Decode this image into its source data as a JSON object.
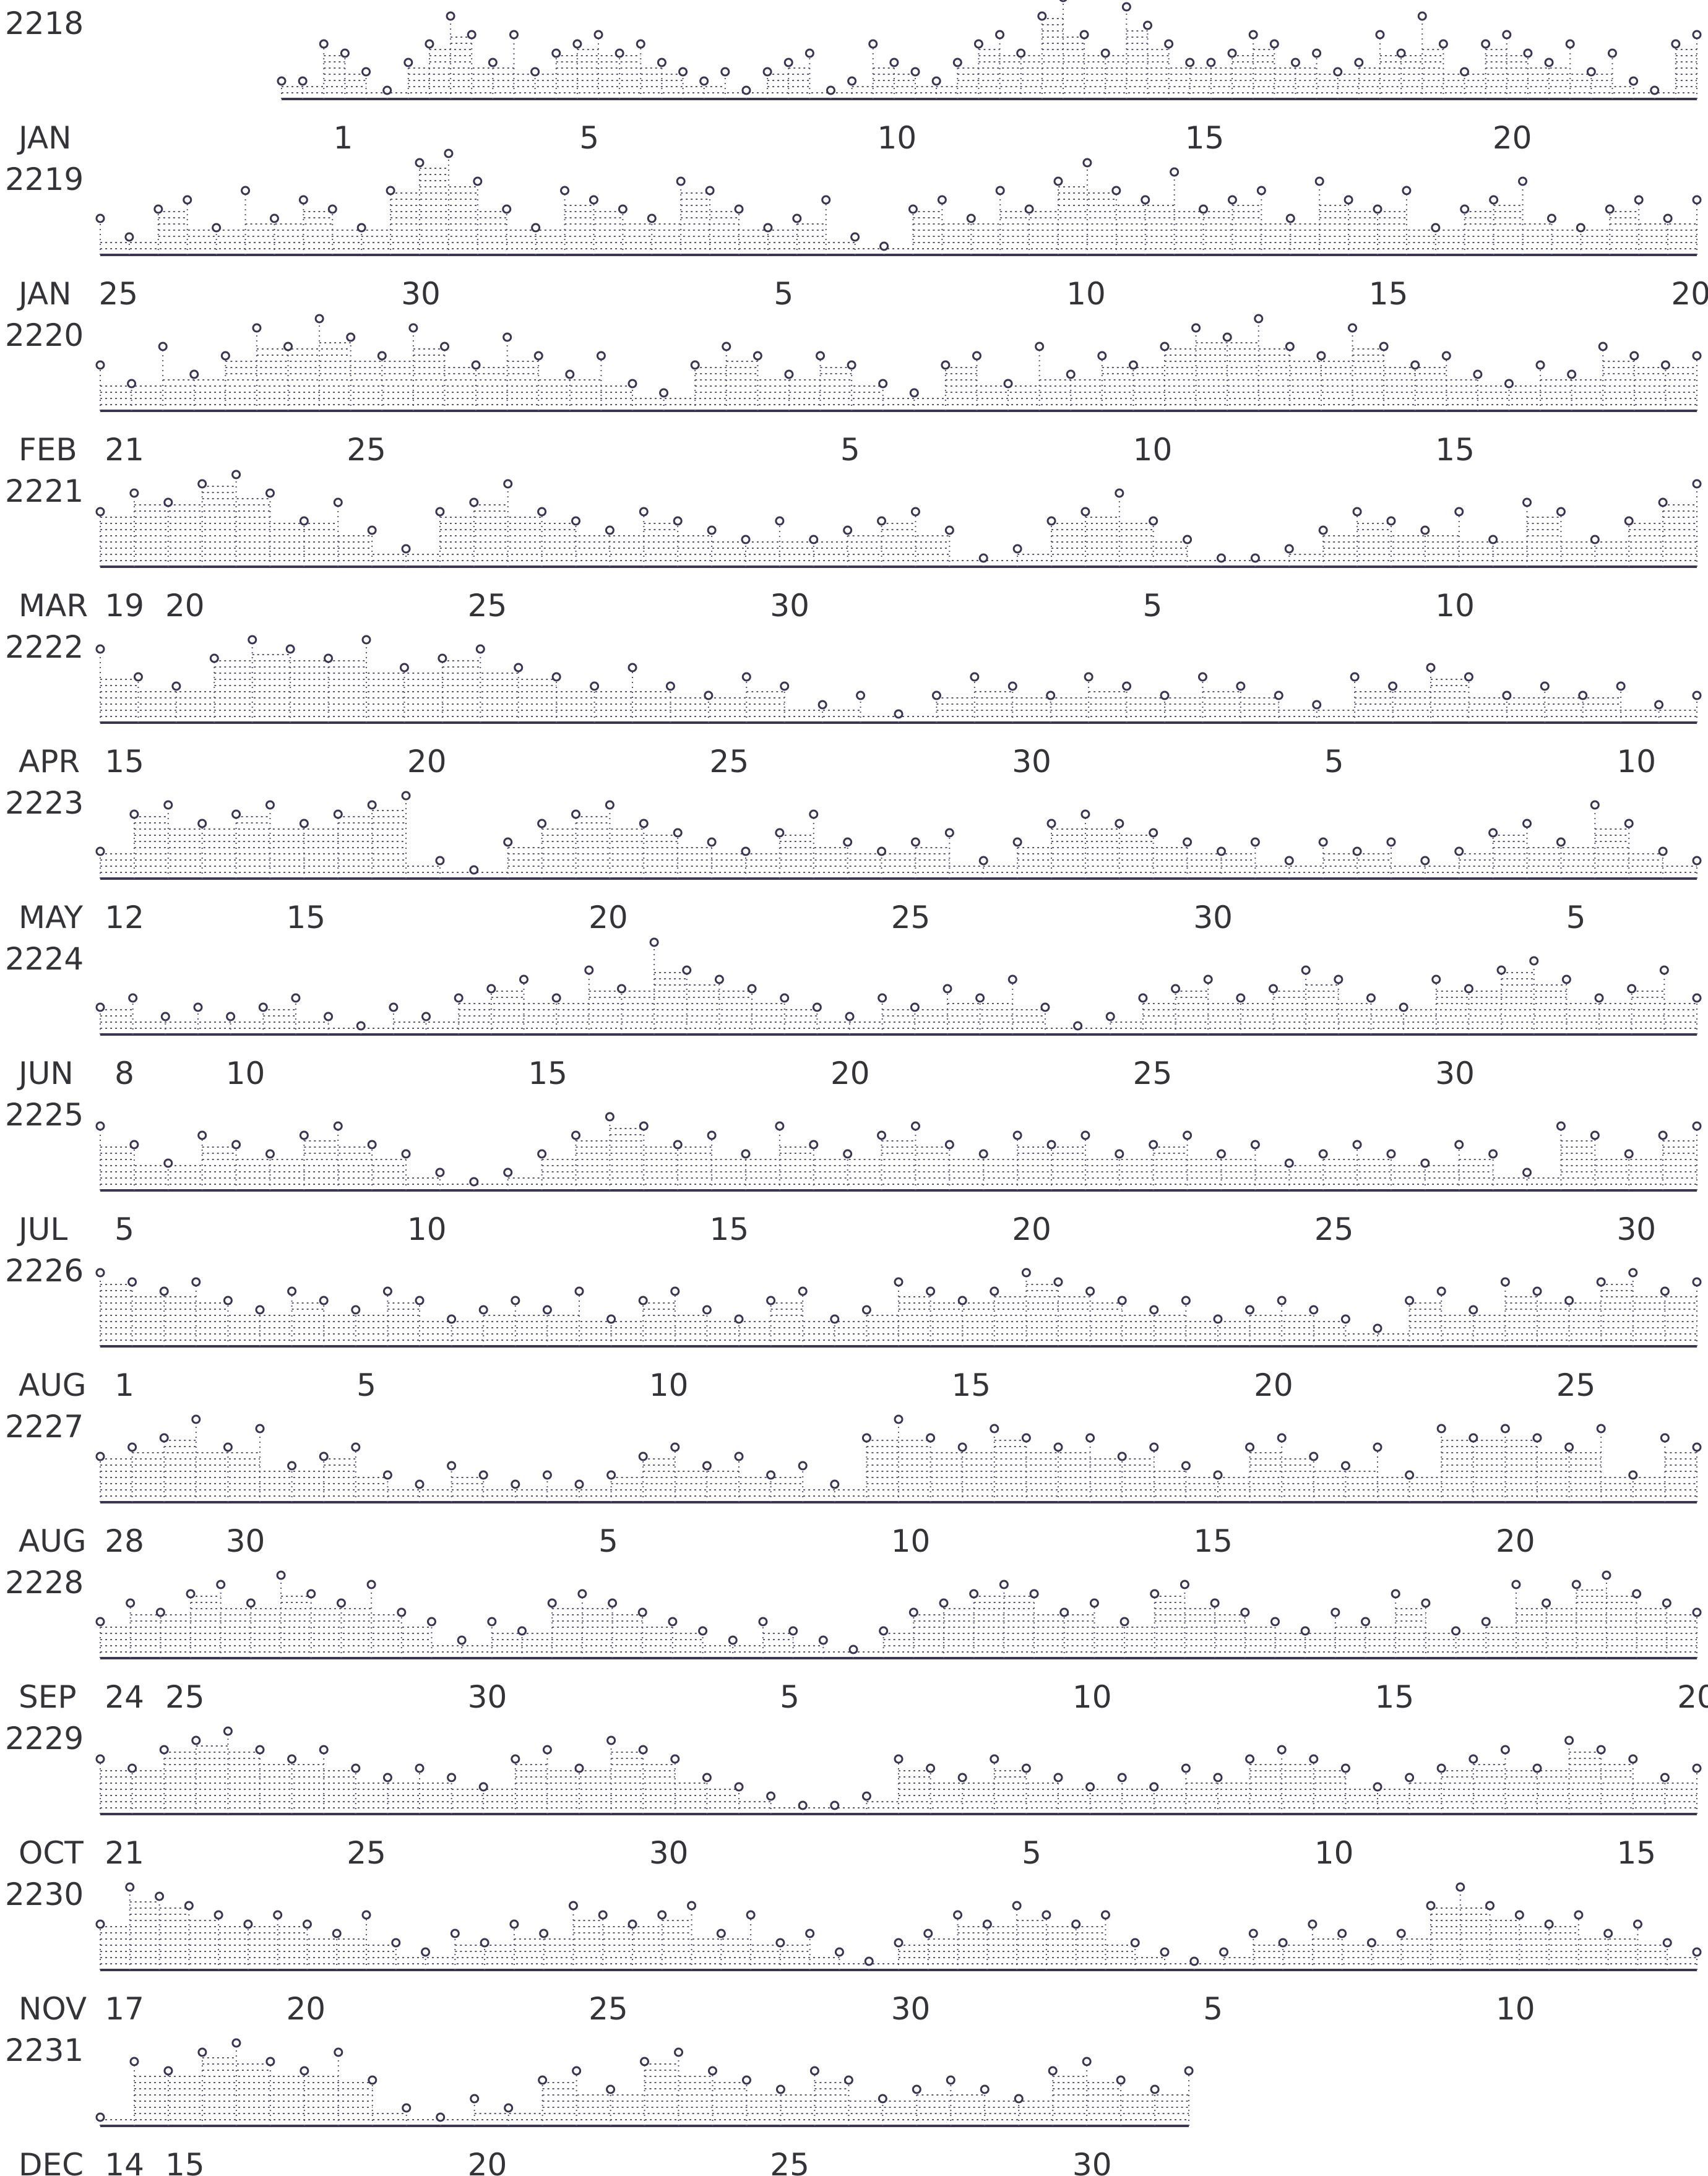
{
  "chart_data": {
    "type": "scatter",
    "title": "",
    "xlabel": "",
    "ylabel": "",
    "colors": {
      "ink": "#3b3550",
      "fill": "#5a5670",
      "label": "#333338"
    },
    "rows": [
      {
        "row_label": "2218",
        "month_label": "JAN",
        "x_range": [
          0.0,
          23.0
        ],
        "ticks": [
          1,
          5,
          10,
          15,
          20
        ],
        "marks": [
          {
            "label": "1",
            "value": 1
          },
          {
            "label": "5",
            "value": 5
          },
          {
            "label": "10",
            "value": 10
          },
          {
            "label": "15",
            "value": 15
          },
          {
            "label": "20",
            "value": 20
          }
        ]
      },
      {
        "row_label": "2219",
        "month_label": "JAN",
        "x_range": [
          24.7,
          51.1
        ],
        "marks": [
          {
            "label": "25",
            "value": 25
          },
          {
            "label": "30",
            "value": 30
          },
          {
            "label": "5",
            "value": 36
          },
          {
            "label": "10",
            "value": 41
          },
          {
            "label": "15",
            "value": 46
          },
          {
            "label": "20",
            "value": 51
          }
        ]
      },
      {
        "row_label": "2220",
        "month_label": "FEB",
        "x_range": [
          20.6,
          47.0
        ],
        "marks": [
          {
            "label": "21",
            "value": 21
          },
          {
            "label": "25",
            "value": 25
          },
          {
            "label": "5",
            "value": 33
          },
          {
            "label": "10",
            "value": 38
          },
          {
            "label": "15",
            "value": 43
          }
        ]
      },
      {
        "row_label": "2221",
        "month_label": "MAR",
        "x_range": [
          18.6,
          45.0
        ],
        "marks": [
          {
            "label": "19",
            "value": 19
          },
          {
            "label": "20",
            "value": 20
          },
          {
            "label": "25",
            "value": 25
          },
          {
            "label": "30",
            "value": 30
          },
          {
            "label": "5",
            "value": 36
          },
          {
            "label": "10",
            "value": 41
          }
        ]
      },
      {
        "row_label": "2222",
        "month_label": "APR",
        "x_range": [
          14.6,
          41.0
        ],
        "marks": [
          {
            "label": "15",
            "value": 15
          },
          {
            "label": "20",
            "value": 20
          },
          {
            "label": "25",
            "value": 25
          },
          {
            "label": "30",
            "value": 30
          },
          {
            "label": "5",
            "value": 35
          },
          {
            "label": "10",
            "value": 40
          }
        ]
      },
      {
        "row_label": "2223",
        "month_label": "MAY",
        "x_range": [
          11.6,
          38.0
        ],
        "marks": [
          {
            "label": "12",
            "value": 12
          },
          {
            "label": "15",
            "value": 15
          },
          {
            "label": "20",
            "value": 20
          },
          {
            "label": "25",
            "value": 25
          },
          {
            "label": "30",
            "value": 30
          },
          {
            "label": "5",
            "value": 36
          }
        ]
      },
      {
        "row_label": "2224",
        "month_label": "JUN",
        "x_range": [
          7.6,
          34.0
        ],
        "marks": [
          {
            "label": "8",
            "value": 8
          },
          {
            "label": "10",
            "value": 10
          },
          {
            "label": "15",
            "value": 15
          },
          {
            "label": "20",
            "value": 20
          },
          {
            "label": "25",
            "value": 25
          },
          {
            "label": "30",
            "value": 30
          }
        ]
      },
      {
        "row_label": "2225",
        "month_label": "JUL",
        "x_range": [
          4.6,
          31.0
        ],
        "marks": [
          {
            "label": "5",
            "value": 5
          },
          {
            "label": "10",
            "value": 10
          },
          {
            "label": "15",
            "value": 15
          },
          {
            "label": "20",
            "value": 20
          },
          {
            "label": "25",
            "value": 25
          },
          {
            "label": "30",
            "value": 30
          }
        ]
      },
      {
        "row_label": "2226",
        "month_label": "AUG",
        "x_range": [
          0.6,
          27.0
        ],
        "marks": [
          {
            "label": "1",
            "value": 1
          },
          {
            "label": "5",
            "value": 5
          },
          {
            "label": "10",
            "value": 10
          },
          {
            "label": "15",
            "value": 15
          },
          {
            "label": "20",
            "value": 20
          },
          {
            "label": "25",
            "value": 25
          }
        ]
      },
      {
        "row_label": "2227",
        "month_label": "AUG",
        "x_range": [
          27.6,
          54.0
        ],
        "marks": [
          {
            "label": "28",
            "value": 28
          },
          {
            "label": "30",
            "value": 30
          },
          {
            "label": "5",
            "value": 36
          },
          {
            "label": "10",
            "value": 41
          },
          {
            "label": "15",
            "value": 46
          },
          {
            "label": "20",
            "value": 51
          }
        ]
      },
      {
        "row_label": "2228",
        "month_label": "SEP",
        "x_range": [
          23.6,
          50.0
        ],
        "marks": [
          {
            "label": "24",
            "value": 24
          },
          {
            "label": "25",
            "value": 25
          },
          {
            "label": "30",
            "value": 30
          },
          {
            "label": "5",
            "value": 35
          },
          {
            "label": "10",
            "value": 40
          },
          {
            "label": "15",
            "value": 45
          },
          {
            "label": "20",
            "value": 50
          }
        ]
      },
      {
        "row_label": "2229",
        "month_label": "OCT",
        "x_range": [
          20.6,
          47.0
        ],
        "marks": [
          {
            "label": "21",
            "value": 21
          },
          {
            "label": "25",
            "value": 25
          },
          {
            "label": "30",
            "value": 30
          },
          {
            "label": "5",
            "value": 36
          },
          {
            "label": "10",
            "value": 41
          },
          {
            "label": "15",
            "value": 46
          }
        ]
      },
      {
        "row_label": "2230",
        "month_label": "NOV",
        "x_range": [
          16.6,
          43.0
        ],
        "marks": [
          {
            "label": "17",
            "value": 17
          },
          {
            "label": "20",
            "value": 20
          },
          {
            "label": "25",
            "value": 25
          },
          {
            "label": "30",
            "value": 30
          },
          {
            "label": "5",
            "value": 35
          },
          {
            "label": "10",
            "value": 40
          }
        ]
      },
      {
        "row_label": "2231",
        "month_label": "DEC",
        "x_range": [
          13.6,
          40.0
        ],
        "partial_end": 31.6,
        "marks": [
          {
            "label": "14",
            "value": 14
          },
          {
            "label": "15",
            "value": 15
          },
          {
            "label": "20",
            "value": 20
          },
          {
            "label": "25",
            "value": 25
          },
          {
            "label": "30",
            "value": 30
          }
        ]
      }
    ],
    "series_profile_note": "",
    "profiles": [
      [
        0.1,
        0.1,
        0.5,
        0.4,
        0.2,
        0.0,
        0.3,
        0.5,
        0.8,
        0.6,
        0.3,
        0.6,
        0.2,
        0.4,
        0.5,
        0.6,
        0.4,
        0.5,
        0.3,
        0.2,
        0.1,
        0.2,
        0.0,
        0.2,
        0.3,
        0.4,
        0.0,
        0.1,
        0.5,
        0.3,
        0.2,
        0.1,
        0.3,
        0.5,
        0.6,
        0.4,
        0.8,
        1.0,
        0.6,
        0.4,
        0.9,
        0.7,
        0.5,
        0.3,
        0.3,
        0.4,
        0.6,
        0.5,
        0.3,
        0.4,
        0.2,
        0.3,
        0.6,
        0.4,
        0.8,
        0.5,
        0.2,
        0.5,
        0.6,
        0.4,
        0.3,
        0.5,
        0.2,
        0.4,
        0.1,
        0.0,
        0.5,
        0.6
      ],
      [
        0.3,
        0.1,
        0.4,
        0.5,
        0.2,
        0.6,
        0.3,
        0.5,
        0.4,
        0.2,
        0.6,
        0.9,
        1.0,
        0.7,
        0.4,
        0.2,
        0.6,
        0.5,
        0.4,
        0.3,
        0.7,
        0.6,
        0.4,
        0.2,
        0.3,
        0.5,
        0.1,
        0.0,
        0.4,
        0.5,
        0.3,
        0.6,
        0.4,
        0.7,
        0.9,
        0.6,
        0.5,
        0.8,
        0.4,
        0.5,
        0.6,
        0.3,
        0.7,
        0.5,
        0.4,
        0.6,
        0.2,
        0.4,
        0.5,
        0.7,
        0.3,
        0.2,
        0.4,
        0.5,
        0.3,
        0.5
      ],
      [
        0.4,
        0.2,
        0.6,
        0.3,
        0.5,
        0.8,
        0.6,
        0.9,
        0.7,
        0.5,
        0.8,
        0.6,
        0.4,
        0.7,
        0.5,
        0.3,
        0.5,
        0.2,
        0.1,
        0.4,
        0.6,
        0.5,
        0.3,
        0.5,
        0.4,
        0.2,
        0.1,
        0.4,
        0.5,
        0.2,
        0.6,
        0.3,
        0.5,
        0.4,
        0.6,
        0.8,
        0.7,
        0.9,
        0.6,
        0.5,
        0.8,
        0.6,
        0.4,
        0.5,
        0.3,
        0.2,
        0.4,
        0.3,
        0.6,
        0.5,
        0.4,
        0.5
      ],
      [
        0.5,
        0.7,
        0.6,
        0.8,
        0.9,
        0.7,
        0.4,
        0.6,
        0.3,
        0.1,
        0.5,
        0.6,
        0.8,
        0.5,
        0.4,
        0.3,
        0.5,
        0.4,
        0.3,
        0.2,
        0.4,
        0.2,
        0.3,
        0.4,
        0.5,
        0.3,
        0.0,
        0.1,
        0.4,
        0.5,
        0.7,
        0.4,
        0.2,
        0.0,
        0.0,
        0.1,
        0.3,
        0.5,
        0.4,
        0.3,
        0.5,
        0.2,
        0.6,
        0.5,
        0.2,
        0.4,
        0.6,
        0.8
      ],
      [
        0.7,
        0.4,
        0.3,
        0.6,
        0.8,
        0.7,
        0.6,
        0.8,
        0.5,
        0.6,
        0.7,
        0.5,
        0.4,
        0.3,
        0.5,
        0.3,
        0.2,
        0.4,
        0.3,
        0.1,
        0.2,
        0.0,
        0.2,
        0.4,
        0.3,
        0.2,
        0.4,
        0.3,
        0.2,
        0.4,
        0.3,
        0.2,
        0.1,
        0.4,
        0.3,
        0.5,
        0.4,
        0.2,
        0.3,
        0.2,
        0.3,
        0.1,
        0.2
      ],
      [
        0.2,
        0.6,
        0.7,
        0.5,
        0.6,
        0.7,
        0.5,
        0.6,
        0.7,
        0.8,
        0.1,
        0.0,
        0.3,
        0.5,
        0.6,
        0.7,
        0.5,
        0.4,
        0.3,
        0.2,
        0.4,
        0.6,
        0.3,
        0.2,
        0.3,
        0.4,
        0.1,
        0.3,
        0.5,
        0.6,
        0.5,
        0.4,
        0.3,
        0.2,
        0.3,
        0.1,
        0.3,
        0.2,
        0.3,
        0.1,
        0.2,
        0.4,
        0.5,
        0.3,
        0.7,
        0.5,
        0.2,
        0.1
      ],
      [
        0.2,
        0.3,
        0.1,
        0.2,
        0.1,
        0.2,
        0.3,
        0.1,
        0.0,
        0.2,
        0.1,
        0.3,
        0.4,
        0.5,
        0.3,
        0.6,
        0.4,
        0.9,
        0.6,
        0.5,
        0.4,
        0.3,
        0.2,
        0.1,
        0.3,
        0.2,
        0.4,
        0.3,
        0.5,
        0.2,
        0.0,
        0.1,
        0.3,
        0.4,
        0.5,
        0.3,
        0.4,
        0.6,
        0.5,
        0.3,
        0.2,
        0.5,
        0.4,
        0.6,
        0.7,
        0.5,
        0.3,
        0.4,
        0.6,
        0.3
      ],
      [
        0.6,
        0.4,
        0.2,
        0.5,
        0.4,
        0.3,
        0.5,
        0.6,
        0.4,
        0.3,
        0.1,
        0.0,
        0.1,
        0.3,
        0.5,
        0.7,
        0.6,
        0.4,
        0.5,
        0.3,
        0.6,
        0.4,
        0.3,
        0.5,
        0.6,
        0.4,
        0.3,
        0.5,
        0.4,
        0.5,
        0.3,
        0.4,
        0.5,
        0.3,
        0.4,
        0.2,
        0.3,
        0.4,
        0.3,
        0.2,
        0.4,
        0.3,
        0.1,
        0.6,
        0.5,
        0.3,
        0.5,
        0.6
      ],
      [
        0.7,
        0.6,
        0.5,
        0.6,
        0.4,
        0.3,
        0.5,
        0.4,
        0.3,
        0.5,
        0.4,
        0.2,
        0.3,
        0.4,
        0.3,
        0.5,
        0.2,
        0.4,
        0.5,
        0.3,
        0.2,
        0.4,
        0.5,
        0.2,
        0.3,
        0.6,
        0.5,
        0.4,
        0.5,
        0.7,
        0.6,
        0.5,
        0.4,
        0.3,
        0.4,
        0.2,
        0.3,
        0.4,
        0.3,
        0.2,
        0.1,
        0.4,
        0.5,
        0.3,
        0.6,
        0.5,
        0.4,
        0.6,
        0.7,
        0.5,
        0.6
      ],
      [
        0.4,
        0.5,
        0.6,
        0.8,
        0.5,
        0.7,
        0.3,
        0.4,
        0.5,
        0.2,
        0.1,
        0.3,
        0.2,
        0.1,
        0.2,
        0.1,
        0.2,
        0.4,
        0.5,
        0.3,
        0.4,
        0.2,
        0.3,
        0.1,
        0.6,
        0.8,
        0.6,
        0.5,
        0.7,
        0.6,
        0.5,
        0.6,
        0.4,
        0.5,
        0.3,
        0.2,
        0.5,
        0.6,
        0.4,
        0.3,
        0.5,
        0.2,
        0.7,
        0.6,
        0.7,
        0.6,
        0.5,
        0.7,
        0.2,
        0.6,
        0.5
      ],
      [
        0.3,
        0.5,
        0.4,
        0.6,
        0.7,
        0.5,
        0.8,
        0.6,
        0.5,
        0.7,
        0.4,
        0.3,
        0.1,
        0.3,
        0.2,
        0.5,
        0.6,
        0.5,
        0.4,
        0.3,
        0.2,
        0.1,
        0.3,
        0.2,
        0.1,
        0.0,
        0.2,
        0.4,
        0.5,
        0.6,
        0.7,
        0.6,
        0.4,
        0.5,
        0.3,
        0.6,
        0.7,
        0.5,
        0.4,
        0.3,
        0.2,
        0.4,
        0.3,
        0.6,
        0.5,
        0.2,
        0.3,
        0.7,
        0.5,
        0.7,
        0.8,
        0.6,
        0.5,
        0.4
      ],
      [
        0.5,
        0.4,
        0.6,
        0.7,
        0.8,
        0.6,
        0.5,
        0.6,
        0.4,
        0.3,
        0.4,
        0.3,
        0.2,
        0.5,
        0.6,
        0.4,
        0.7,
        0.6,
        0.5,
        0.3,
        0.2,
        0.1,
        0.0,
        0.0,
        0.1,
        0.5,
        0.4,
        0.3,
        0.5,
        0.4,
        0.3,
        0.2,
        0.3,
        0.2,
        0.4,
        0.3,
        0.5,
        0.6,
        0.5,
        0.4,
        0.2,
        0.3,
        0.4,
        0.5,
        0.6,
        0.4,
        0.7,
        0.6,
        0.5,
        0.3,
        0.4
      ],
      [
        0.4,
        0.8,
        0.7,
        0.6,
        0.5,
        0.4,
        0.5,
        0.4,
        0.3,
        0.5,
        0.2,
        0.1,
        0.3,
        0.2,
        0.4,
        0.3,
        0.6,
        0.5,
        0.4,
        0.5,
        0.6,
        0.3,
        0.5,
        0.2,
        0.3,
        0.1,
        0.0,
        0.2,
        0.3,
        0.5,
        0.4,
        0.6,
        0.5,
        0.4,
        0.5,
        0.2,
        0.1,
        0.0,
        0.1,
        0.3,
        0.2,
        0.4,
        0.3,
        0.2,
        0.3,
        0.6,
        0.8,
        0.6,
        0.5,
        0.4,
        0.5,
        0.3,
        0.4,
        0.2,
        0.1
      ],
      [
        0.0,
        0.6,
        0.5,
        0.7,
        0.8,
        0.6,
        0.5,
        0.7,
        0.4,
        0.1,
        0.0,
        0.2,
        0.1,
        0.4,
        0.5,
        0.3,
        0.6,
        0.7,
        0.5,
        0.4,
        0.3,
        0.5,
        0.4,
        0.2,
        0.3,
        0.4,
        0.3,
        0.2,
        0.5,
        0.6,
        0.4,
        0.3,
        0.5
      ]
    ]
  }
}
